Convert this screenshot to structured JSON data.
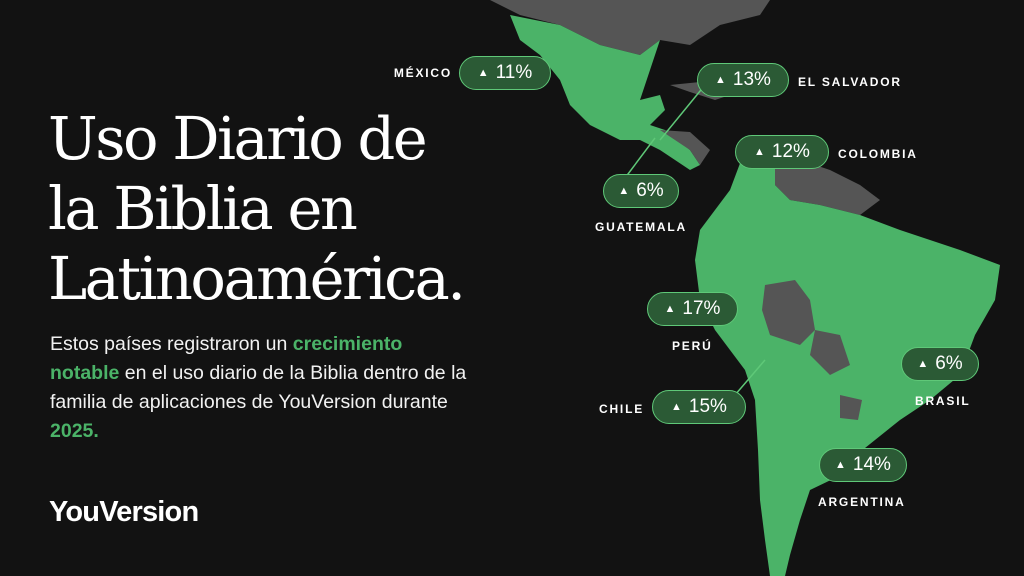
{
  "title_lines": [
    "Uso Diario de",
    "la Biblia en",
    "Latinoamérica."
  ],
  "body": {
    "part1": "Estos países registraron un ",
    "hl1": "crecimiento notable",
    "part2": " en el uso diario de la Biblia dentro de la familia de aplicaciones de YouVersion durante ",
    "hl2": "2025."
  },
  "logo": "YouVersion",
  "colors": {
    "background": "#121212",
    "highlight_country": "#4bb368",
    "other_country": "#555555",
    "badge_fill": "#2b5a35",
    "badge_border": "#5fc878"
  },
  "badge_icon": "up-triangle-icon",
  "countries": [
    {
      "name": "MÉXICO",
      "growth": "11%"
    },
    {
      "name": "EL SALVADOR",
      "growth": "13%"
    },
    {
      "name": "COLOMBIA",
      "growth": "12%"
    },
    {
      "name": "GUATEMALA",
      "growth": "6%"
    },
    {
      "name": "PERÚ",
      "growth": "17%"
    },
    {
      "name": "CHILE",
      "growth": "15%"
    },
    {
      "name": "BRASIL",
      "growth": "6%"
    },
    {
      "name": "ARGENTINA",
      "growth": "14%"
    }
  ]
}
